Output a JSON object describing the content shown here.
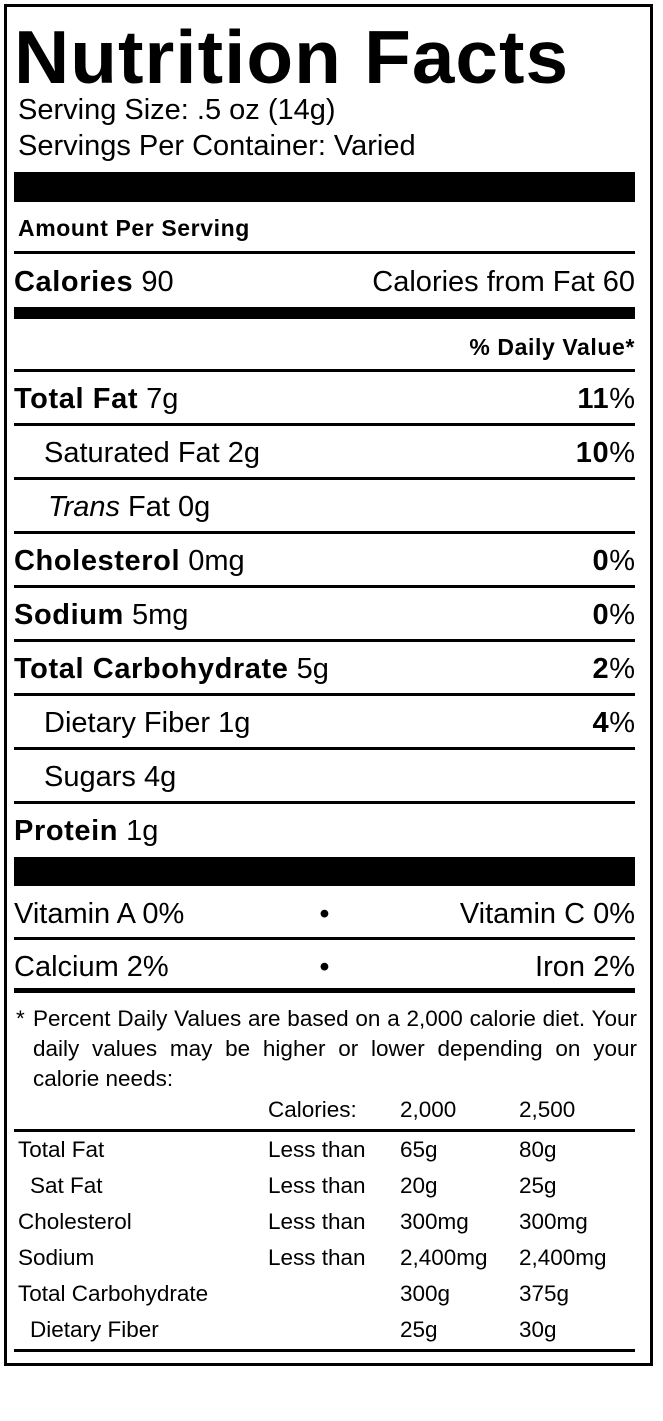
{
  "title": "Nutrition Facts",
  "serving_size": "Serving Size: .5 oz (14g)",
  "servings_per_container": "Servings Per Container: Varied",
  "amount_per_serving": "Amount Per Serving",
  "calories": {
    "label": "Calories",
    "value": "90",
    "from_fat": "Calories from Fat 60"
  },
  "daily_value_header": "% Daily Value*",
  "nutrients": [
    {
      "label": "Total Fat",
      "amount": "7g",
      "dv": "11",
      "bold": true
    },
    {
      "label": "Saturated Fat",
      "amount": "2g",
      "dv": "10",
      "bold": false
    },
    {
      "label_italic": "Trans",
      "label": "Fat",
      "amount": "0g",
      "dv": "",
      "bold": false
    },
    {
      "label": "Cholesterol",
      "amount": "0mg",
      "dv": "0",
      "bold": true
    },
    {
      "label": "Sodium",
      "amount": "5mg",
      "dv": "0",
      "bold": true
    },
    {
      "label": "Total Carbohydrate",
      "amount": "5g",
      "dv": "2",
      "bold": true
    },
    {
      "label": "Dietary Fiber",
      "amount": "1g",
      "dv": "4",
      "bold": false
    },
    {
      "label": "Sugars",
      "amount": "4g",
      "dv": "",
      "bold": false
    },
    {
      "label": "Protein",
      "amount": "1g",
      "dv": "",
      "bold": true
    }
  ],
  "percent_sign": "%",
  "vitamins": [
    {
      "left": "Vitamin A 0%",
      "bullet": "•",
      "right": "Vitamin C 0%"
    },
    {
      "left": "Calcium 2%",
      "bullet": "•",
      "right": "Iron 2%"
    }
  ],
  "footnote": {
    "asterisk": "*",
    "text": "Percent Daily Values are based on a 2,000 calorie diet. Your daily values may be higher or lower depending on your calorie needs:"
  },
  "reference_table": {
    "header": [
      "",
      "Calories:",
      "2,000",
      "2,500"
    ],
    "rows": [
      [
        "Total Fat",
        "Less than",
        "65g",
        "80g"
      ],
      [
        "Sat Fat",
        "Less than",
        "20g",
        "25g"
      ],
      [
        "Cholesterol",
        "Less than",
        "300mg",
        "300mg"
      ],
      [
        "Sodium",
        "Less than",
        "2,400mg",
        "2,400mg"
      ],
      [
        "Total Carbohydrate",
        "",
        "300g",
        "375g"
      ],
      [
        "Dietary Fiber",
        "",
        "25g",
        "30g"
      ]
    ]
  }
}
